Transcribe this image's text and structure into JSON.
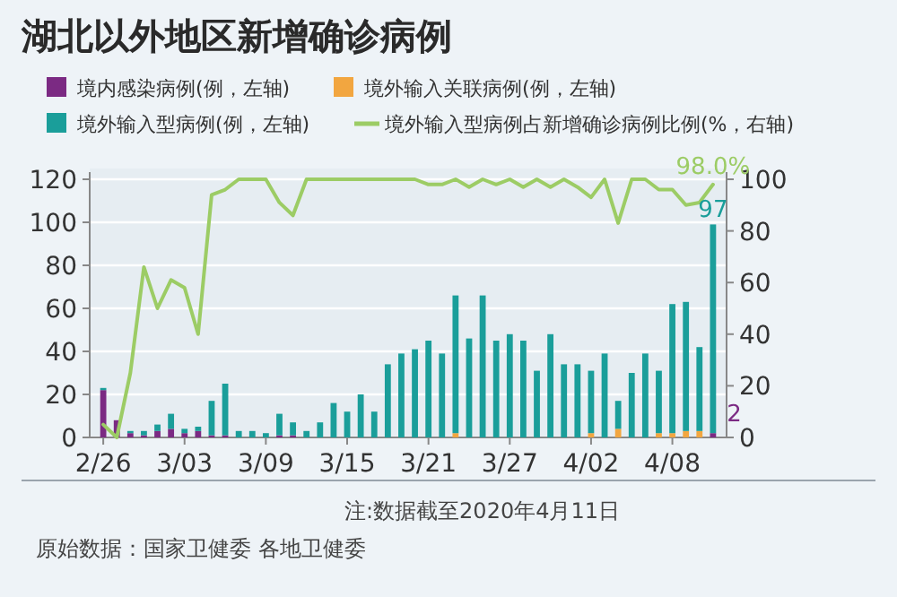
{
  "chart_data": {
    "type": "bar",
    "title": "湖北以外地区新增确诊病例",
    "stacked": true,
    "grid": "y",
    "legend": "top",
    "x": [
      "2020-02-26",
      "2020-02-27",
      "2020-02-28",
      "2020-02-29",
      "2020-03-01",
      "2020-03-02",
      "2020-03-03",
      "2020-03-04",
      "2020-03-05",
      "2020-03-06",
      "2020-03-07",
      "2020-03-08",
      "2020-03-09",
      "2020-03-10",
      "2020-03-11",
      "2020-03-12",
      "2020-03-13",
      "2020-03-14",
      "2020-03-15",
      "2020-03-16",
      "2020-03-17",
      "2020-03-18",
      "2020-03-19",
      "2020-03-20",
      "2020-03-21",
      "2020-03-22",
      "2020-03-23",
      "2020-03-24",
      "2020-03-25",
      "2020-03-26",
      "2020-03-27",
      "2020-03-28",
      "2020-03-29",
      "2020-03-30",
      "2020-03-31",
      "2020-04-01",
      "2020-04-02",
      "2020-04-03",
      "2020-04-04",
      "2020-04-05",
      "2020-04-06",
      "2020-04-07",
      "2020-04-08",
      "2020-04-09",
      "2020-04-10",
      "2020-04-11"
    ],
    "xlim": [
      "2020-02-25",
      "2020-04-12"
    ],
    "xticks": [
      {
        "value": "2020-02-26",
        "label": "2/26"
      },
      {
        "value": "2020-03-03",
        "label": "3/03"
      },
      {
        "value": "2020-03-09",
        "label": "3/09"
      },
      {
        "value": "2020-03-15",
        "label": "3/15"
      },
      {
        "value": "2020-03-21",
        "label": "3/21"
      },
      {
        "value": "2020-03-27",
        "label": "3/27"
      },
      {
        "value": "2020-04-02",
        "label": "4/02"
      },
      {
        "value": "2020-04-08",
        "label": "4/08"
      }
    ],
    "ylim": [
      0,
      120
    ],
    "yticks": [
      0,
      20,
      40,
      60,
      80,
      100,
      120
    ],
    "y2lim": [
      0,
      100
    ],
    "y2ticks": [
      0,
      20,
      40,
      60,
      80,
      100
    ],
    "series": [
      {
        "name": "境内感染病例(例，左轴)",
        "color": "#7b2a83",
        "values": [
          22,
          8,
          2,
          1,
          3,
          4,
          2,
          3,
          1,
          1,
          0,
          0,
          0,
          1,
          1,
          0,
          0,
          0,
          0,
          0,
          0,
          0,
          0,
          0,
          0,
          0,
          0,
          0,
          0,
          0,
          0,
          0,
          0,
          0,
          0,
          0,
          0,
          0,
          0,
          0,
          0,
          0,
          0,
          0,
          0,
          2
        ],
        "value_labels": [
          null,
          null,
          null,
          null,
          null,
          null,
          null,
          null,
          null,
          null,
          null,
          null,
          null,
          null,
          null,
          null,
          null,
          null,
          null,
          null,
          null,
          null,
          null,
          null,
          null,
          null,
          null,
          null,
          null,
          null,
          null,
          null,
          null,
          null,
          null,
          null,
          null,
          null,
          null,
          null,
          null,
          null,
          null,
          null,
          null,
          "2"
        ]
      },
      {
        "name": "境外输入关联病例(例，左轴)",
        "color": "#f2a640",
        "values": [
          0,
          0,
          0,
          0,
          0,
          0,
          0,
          0,
          0,
          0,
          0,
          0,
          0,
          0,
          0,
          0,
          0,
          0,
          0,
          0,
          0,
          0,
          0,
          0,
          0,
          0,
          2,
          0,
          0,
          0,
          0,
          0,
          0,
          0,
          0,
          0,
          2,
          0,
          4,
          0,
          0,
          2,
          2,
          3,
          3,
          0
        ]
      },
      {
        "name": "境外输入型病例(例，左轴)",
        "color": "#1a9e9a",
        "values": [
          1,
          0,
          1,
          2,
          3,
          7,
          2,
          2,
          16,
          24,
          3,
          3,
          2,
          10,
          6,
          3,
          7,
          16,
          12,
          20,
          12,
          34,
          39,
          41,
          45,
          39,
          64,
          46,
          66,
          45,
          48,
          45,
          31,
          48,
          34,
          34,
          29,
          39,
          13,
          30,
          39,
          29,
          60,
          60,
          39,
          97
        ],
        "value_labels": [
          null,
          null,
          null,
          null,
          null,
          null,
          null,
          null,
          null,
          null,
          null,
          null,
          null,
          null,
          null,
          null,
          null,
          null,
          null,
          null,
          null,
          null,
          null,
          null,
          null,
          null,
          null,
          null,
          null,
          null,
          null,
          null,
          null,
          null,
          null,
          null,
          null,
          null,
          null,
          null,
          null,
          null,
          null,
          null,
          null,
          "97"
        ]
      },
      {
        "name": "境外输入型病例占新增确诊病例比例(%，右轴)",
        "type": "line",
        "axis": "y2",
        "color": "#9ccc65",
        "values": [
          5,
          0,
          25,
          66,
          50,
          61,
          58,
          40,
          94,
          96,
          100,
          100,
          100,
          91,
          86,
          100,
          100,
          100,
          100,
          100,
          100,
          100,
          100,
          100,
          98,
          98,
          100,
          97,
          100,
          98,
          100,
          97,
          100,
          97,
          100,
          97,
          93,
          100,
          83,
          100,
          100,
          96,
          96,
          90,
          91,
          98
        ],
        "value_labels": [
          null,
          null,
          null,
          null,
          null,
          null,
          null,
          null,
          null,
          null,
          null,
          null,
          null,
          null,
          null,
          null,
          null,
          null,
          null,
          null,
          null,
          null,
          null,
          null,
          null,
          null,
          null,
          null,
          null,
          null,
          null,
          null,
          null,
          null,
          null,
          null,
          null,
          null,
          null,
          null,
          null,
          null,
          null,
          null,
          null,
          "98.0%"
        ]
      }
    ],
    "annotations": [
      "注:数据截至2020年4月11日",
      "原始数据：国家卫健委 各地卫健委"
    ]
  }
}
